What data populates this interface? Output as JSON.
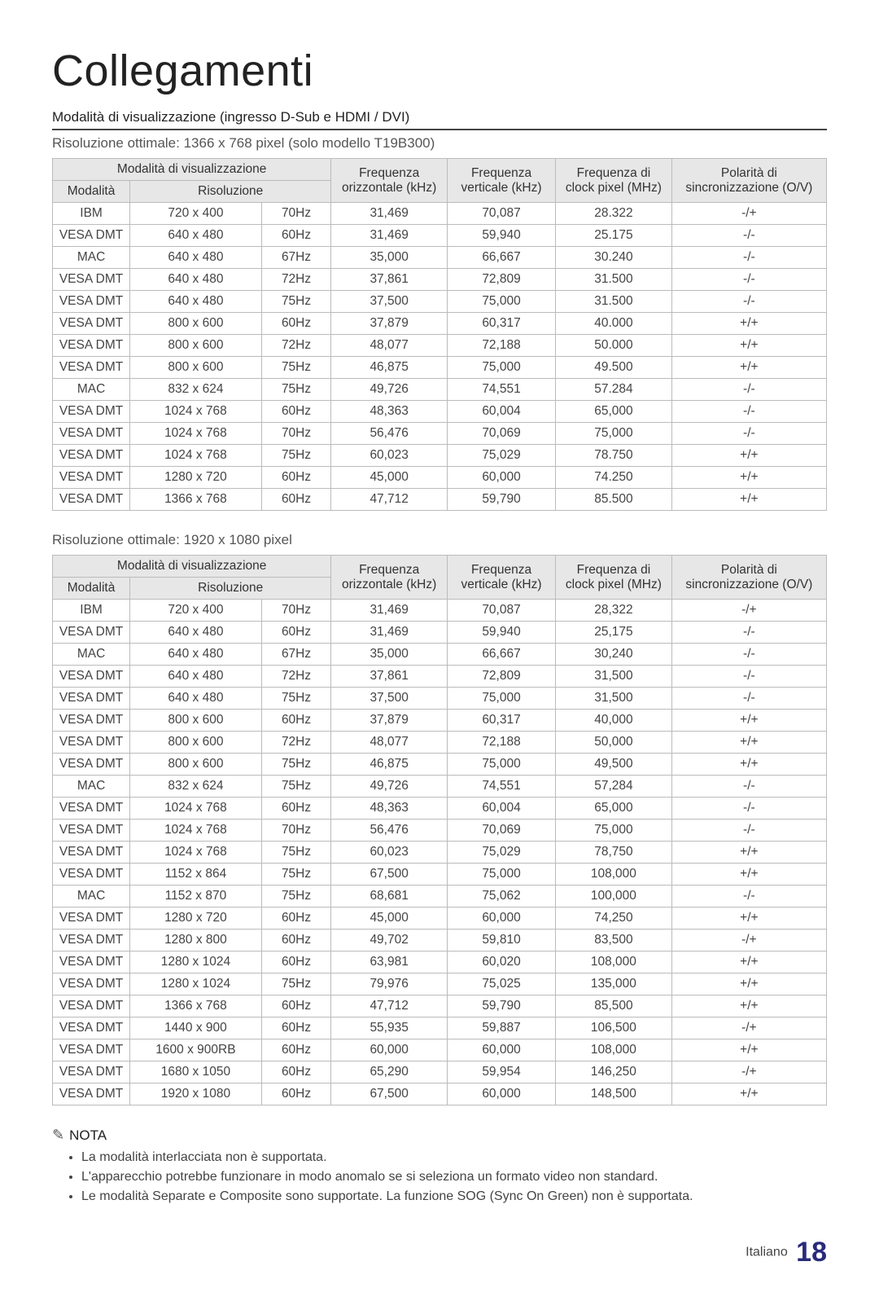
{
  "page": {
    "title": "Collegamenti",
    "subheading": "Modalità di visualizzazione (ingresso D-Sub e HDMI / DVI)",
    "caption1": "Risoluzione ottimale: 1366 x 768 pixel (solo modello T19B300)",
    "caption2": "Risoluzione ottimale: 1920 x 1080 pixel"
  },
  "headers": {
    "group_mode": "Modalità di visualizzazione",
    "mode": "Modalità",
    "resolution": "Risoluzione",
    "fh": "Frequenza orizzontale (kHz)",
    "fv": "Frequenza verticale (kHz)",
    "clk": "Frequenza di clock pixel (MHz)",
    "pol": "Polarità di sincronizzazione (O/V)"
  },
  "table1": [
    [
      "IBM",
      "720 x 400",
      "70Hz",
      "31,469",
      "70,087",
      "28.322",
      "-/+"
    ],
    [
      "VESA DMT",
      "640 x 480",
      "60Hz",
      "31,469",
      "59,940",
      "25.175",
      "-/-"
    ],
    [
      "MAC",
      "640 x 480",
      "67Hz",
      "35,000",
      "66,667",
      "30.240",
      "-/-"
    ],
    [
      "VESA DMT",
      "640 x 480",
      "72Hz",
      "37,861",
      "72,809",
      "31.500",
      "-/-"
    ],
    [
      "VESA DMT",
      "640 x 480",
      "75Hz",
      "37,500",
      "75,000",
      "31.500",
      "-/-"
    ],
    [
      "VESA DMT",
      "800 x 600",
      "60Hz",
      "37,879",
      "60,317",
      "40.000",
      "+/+"
    ],
    [
      "VESA DMT",
      "800 x 600",
      "72Hz",
      "48,077",
      "72,188",
      "50.000",
      "+/+"
    ],
    [
      "VESA DMT",
      "800 x 600",
      "75Hz",
      "46,875",
      "75,000",
      "49.500",
      "+/+"
    ],
    [
      "MAC",
      "832 x 624",
      "75Hz",
      "49,726",
      "74,551",
      "57.284",
      "-/-"
    ],
    [
      "VESA DMT",
      "1024 x 768",
      "60Hz",
      "48,363",
      "60,004",
      "65,000",
      "-/-"
    ],
    [
      "VESA DMT",
      "1024 x 768",
      "70Hz",
      "56,476",
      "70,069",
      "75,000",
      "-/-"
    ],
    [
      "VESA DMT",
      "1024 x 768",
      "75Hz",
      "60,023",
      "75,029",
      "78.750",
      "+/+"
    ],
    [
      "VESA DMT",
      "1280 x 720",
      "60Hz",
      "45,000",
      "60,000",
      "74.250",
      "+/+"
    ],
    [
      "VESA DMT",
      "1366 x 768",
      "60Hz",
      "47,712",
      "59,790",
      "85.500",
      "+/+"
    ]
  ],
  "table2": [
    [
      "IBM",
      "720 x 400",
      "70Hz",
      "31,469",
      "70,087",
      "28,322",
      "-/+"
    ],
    [
      "VESA DMT",
      "640 x 480",
      "60Hz",
      "31,469",
      "59,940",
      "25,175",
      "-/-"
    ],
    [
      "MAC",
      "640 x 480",
      "67Hz",
      "35,000",
      "66,667",
      "30,240",
      "-/-"
    ],
    [
      "VESA DMT",
      "640 x 480",
      "72Hz",
      "37,861",
      "72,809",
      "31,500",
      "-/-"
    ],
    [
      "VESA DMT",
      "640 x 480",
      "75Hz",
      "37,500",
      "75,000",
      "31,500",
      "-/-"
    ],
    [
      "VESA DMT",
      "800 x 600",
      "60Hz",
      "37,879",
      "60,317",
      "40,000",
      "+/+"
    ],
    [
      "VESA DMT",
      "800 x 600",
      "72Hz",
      "48,077",
      "72,188",
      "50,000",
      "+/+"
    ],
    [
      "VESA DMT",
      "800 x 600",
      "75Hz",
      "46,875",
      "75,000",
      "49,500",
      "+/+"
    ],
    [
      "MAC",
      "832 x 624",
      "75Hz",
      "49,726",
      "74,551",
      "57,284",
      "-/-"
    ],
    [
      "VESA DMT",
      "1024 x 768",
      "60Hz",
      "48,363",
      "60,004",
      "65,000",
      "-/-"
    ],
    [
      "VESA DMT",
      "1024 x 768",
      "70Hz",
      "56,476",
      "70,069",
      "75,000",
      "-/-"
    ],
    [
      "VESA DMT",
      "1024 x 768",
      "75Hz",
      "60,023",
      "75,029",
      "78,750",
      "+/+"
    ],
    [
      "VESA DMT",
      "1152 x 864",
      "75Hz",
      "67,500",
      "75,000",
      "108,000",
      "+/+"
    ],
    [
      "MAC",
      "1152 x 870",
      "75Hz",
      "68,681",
      "75,062",
      "100,000",
      "-/-"
    ],
    [
      "VESA DMT",
      "1280 x 720",
      "60Hz",
      "45,000",
      "60,000",
      "74,250",
      "+/+"
    ],
    [
      "VESA DMT",
      "1280 x 800",
      "60Hz",
      "49,702",
      "59,810",
      "83,500",
      "-/+"
    ],
    [
      "VESA DMT",
      "1280 x 1024",
      "60Hz",
      "63,981",
      "60,020",
      "108,000",
      "+/+"
    ],
    [
      "VESA DMT",
      "1280 x 1024",
      "75Hz",
      "79,976",
      "75,025",
      "135,000",
      "+/+"
    ],
    [
      "VESA DMT",
      "1366 x 768",
      "60Hz",
      "47,712",
      "59,790",
      "85,500",
      "+/+"
    ],
    [
      "VESA DMT",
      "1440 x 900",
      "60Hz",
      "55,935",
      "59,887",
      "106,500",
      "-/+"
    ],
    [
      "VESA DMT",
      "1600 x 900RB",
      "60Hz",
      "60,000",
      "60,000",
      "108,000",
      "+/+"
    ],
    [
      "VESA DMT",
      "1680 x 1050",
      "60Hz",
      "65,290",
      "59,954",
      "146,250",
      "-/+"
    ],
    [
      "VESA DMT",
      "1920 x 1080",
      "60Hz",
      "67,500",
      "60,000",
      "148,500",
      "+/+"
    ]
  ],
  "nota": {
    "label": "NOTA",
    "items": [
      "La modalità interlacciata non è supportata.",
      "L'apparecchio potrebbe funzionare in modo anomalo se si seleziona un formato video non standard.",
      "Le modalità Separate e Composite sono supportate. La funzione SOG (Sync On Green) non è supportata."
    ]
  },
  "footer": {
    "lang": "Italiano",
    "page": "18"
  },
  "colors": {
    "header_bg": "#e7e7e7",
    "border": "#bbbbbb",
    "pageno": "#2a2a7a"
  }
}
